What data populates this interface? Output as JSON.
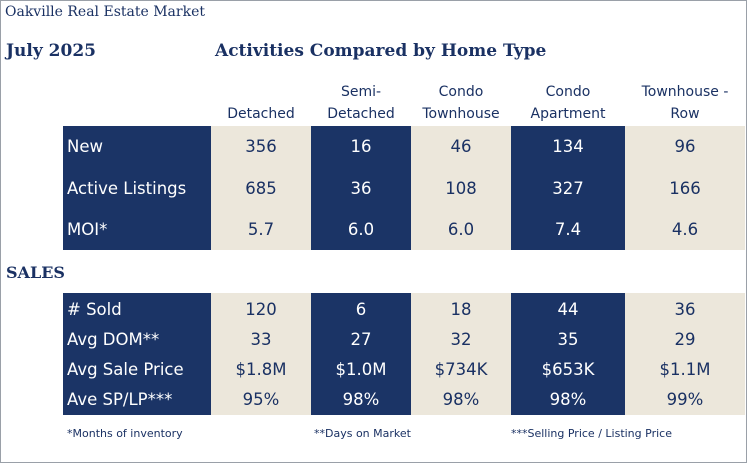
{
  "header": {
    "top_title": "Oakville Real Estate Market",
    "month": "July 2025",
    "title": "Activities Compared by Home Type"
  },
  "columns": [
    "Detached",
    "Semi-\nDetached",
    "Condo\nTownhouse",
    "Condo\nApartment",
    "Townhouse -\nRow"
  ],
  "activity": {
    "rows": [
      {
        "label": "New",
        "values": [
          "356",
          "16",
          "46",
          "134",
          "96"
        ]
      },
      {
        "label": "Active Listings",
        "values": [
          "685",
          "36",
          "108",
          "327",
          "166"
        ]
      },
      {
        "label": "MOI*",
        "values": [
          "5.7",
          "6.0",
          "6.0",
          "7.4",
          "4.6"
        ]
      }
    ]
  },
  "sales": {
    "heading": "SALES",
    "rows": [
      {
        "label": "# Sold",
        "values": [
          "120",
          "6",
          "18",
          "44",
          "36"
        ]
      },
      {
        "label": "Avg DOM**",
        "values": [
          "33",
          "27",
          "32",
          "35",
          "29"
        ]
      },
      {
        "label": "Avg Sale Price",
        "values": [
          "$1.8M",
          "$1.0M",
          "$734K",
          "$653K",
          "$1.1M"
        ]
      },
      {
        "label": "Ave SP/LP***",
        "values": [
          "95%",
          "98%",
          "98%",
          "98%",
          "99%"
        ]
      }
    ]
  },
  "footnotes": {
    "moi": "*Months of inventory",
    "dom": "**Days on Market",
    "splp": "***Selling Price / Listing Price"
  },
  "colors": {
    "navy": "#1b3466",
    "beige": "#ece7db",
    "text_navy": "#1a3163"
  }
}
